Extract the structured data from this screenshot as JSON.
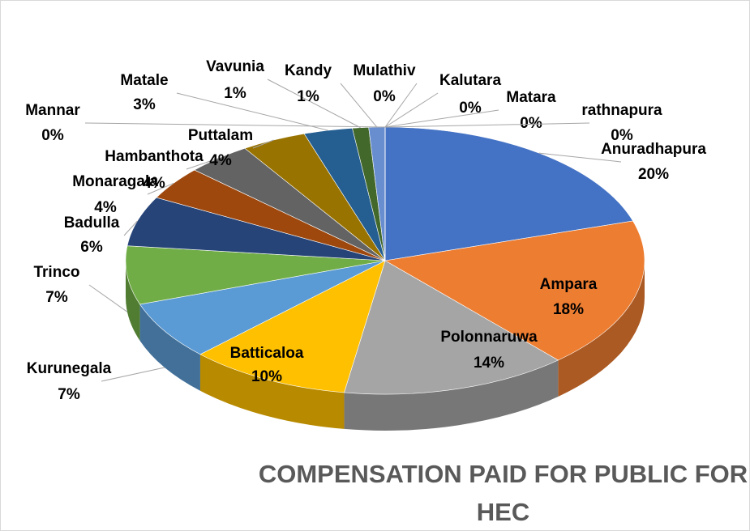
{
  "chart_data": {
    "type": "pie",
    "three_d": true,
    "title": "COMPENSATION PAID FOR PUBLIC FOR HEC",
    "categories": [
      "Anuradhapura",
      "Ampara",
      "Polonnaruwa",
      "Batticaloa",
      "Kurunegala",
      "Trinco",
      "Badulla",
      "Monaragala",
      "Hambanthota",
      "Puttalam",
      "Matale",
      "Vavunia",
      "Kandy",
      "Mannar",
      "Mulathiv",
      "Kalutara",
      "Matara",
      "rathnapura"
    ],
    "values": [
      20,
      18,
      14,
      10,
      7,
      7,
      6,
      4,
      4,
      4,
      3,
      1,
      1,
      0,
      0,
      0,
      0,
      0
    ],
    "value_labels": [
      "20%",
      "18%",
      "14%",
      "10%",
      "7%",
      "7%",
      "6%",
      "4%",
      "4%",
      "4%",
      "3%",
      "1%",
      "1%",
      "0%",
      "0%",
      "0%",
      "0%",
      "0%"
    ],
    "colors": [
      "#4472c4",
      "#ed7d31",
      "#a5a5a5",
      "#ffc000",
      "#5b9bd5",
      "#70ad47",
      "#264478",
      "#9e480e",
      "#636363",
      "#997300",
      "#255e91",
      "#43682b",
      "#698ed0",
      "#f1975a",
      "#b7b7b7",
      "#ffcd33",
      "#7cafdd",
      "#8cc168"
    ]
  }
}
